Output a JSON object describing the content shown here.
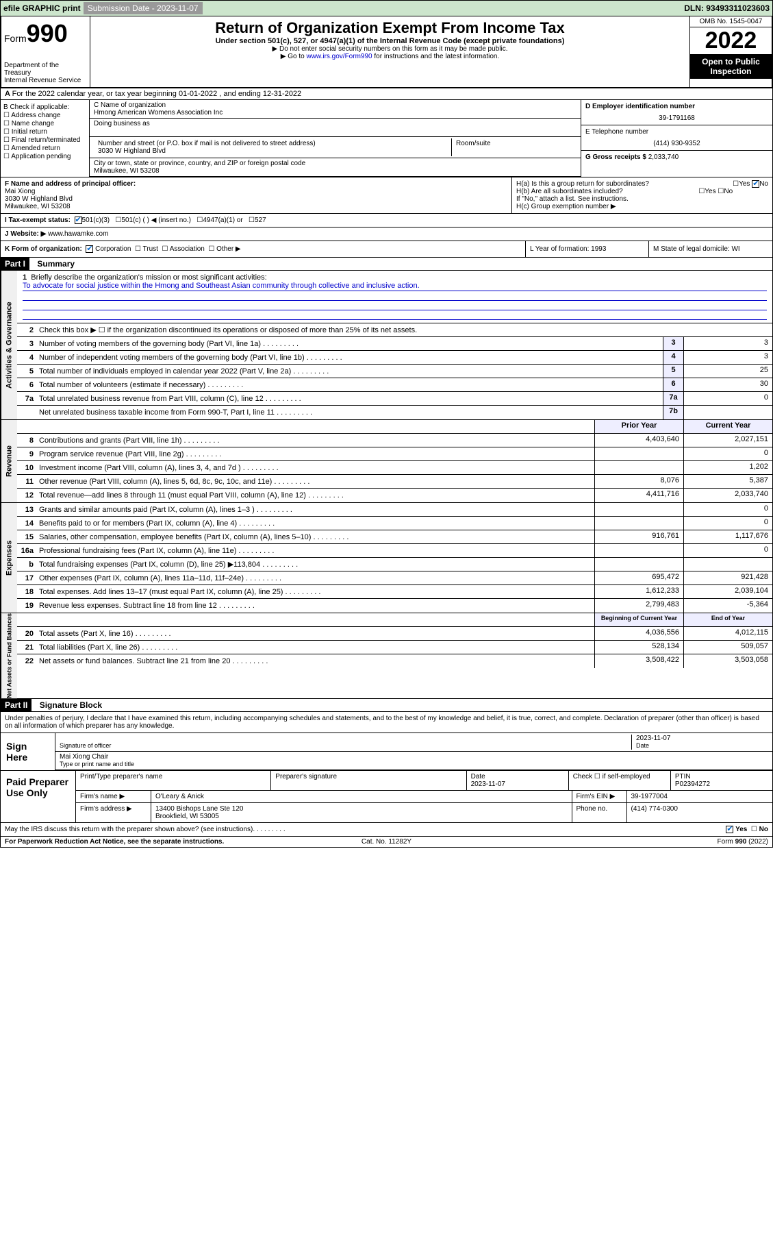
{
  "topbar": {
    "efile": "efile GRAPHIC print",
    "sub_label": "Submission Date - 2023-11-07",
    "dln": "DLN: 93493311023603"
  },
  "header": {
    "form_label": "Form",
    "form_num": "990",
    "dept": "Department of the Treasury\nInternal Revenue Service",
    "title": "Return of Organization Exempt From Income Tax",
    "sub1": "Under section 501(c), 527, or 4947(a)(1) of the Internal Revenue Code (except private foundations)",
    "sub2a": "▶ Do not enter social security numbers on this form as it may be made public.",
    "sub2b": "▶ Go to www.irs.gov/Form990 for instructions and the latest information.",
    "omb": "OMB No. 1545-0047",
    "year": "2022",
    "pub": "Open to Public Inspection"
  },
  "period": "For the 2022 calendar year, or tax year beginning 01-01-2022   , and ending 12-31-2022",
  "box_b": {
    "header": "B Check if applicable:",
    "items": [
      "Address change",
      "Name change",
      "Initial return",
      "Final return/terminated",
      "Amended return",
      "Application pending"
    ]
  },
  "box_c": {
    "name_lbl": "C Name of organization",
    "name": "Hmong American Womens Association Inc",
    "dba_lbl": "Doing business as",
    "addr_lbl": "Number and street (or P.O. box if mail is not delivered to street address)",
    "room_lbl": "Room/suite",
    "addr": "3030 W Highland Blvd",
    "city_lbl": "City or town, state or province, country, and ZIP or foreign postal code",
    "city": "Milwaukee, WI  53208"
  },
  "box_d": {
    "lbl": "D Employer identification number",
    "val": "39-1791168"
  },
  "box_e": {
    "lbl": "E Telephone number",
    "val": "(414) 930-9352"
  },
  "box_g": {
    "lbl": "G Gross receipts $",
    "val": "2,033,740"
  },
  "box_f": {
    "lbl": "F  Name and address of principal officer:",
    "name": "Mai Xiong",
    "addr1": "3030 W Highland Blvd",
    "addr2": "Milwaukee, WI  53208"
  },
  "box_h": {
    "a": "H(a)  Is this a group return for subordinates?",
    "a_ans": "No",
    "b": "H(b)  Are all subordinates included?",
    "b_note": "If \"No,\" attach a list. See instructions.",
    "c": "H(c)  Group exemption number ▶"
  },
  "box_i": "I    Tax-exempt status:",
  "box_i_opts": [
    "501(c)(3)",
    "501(c) (  ) ◀ (insert no.)",
    "4947(a)(1) or",
    "527"
  ],
  "box_j": {
    "lbl": "J   Website: ▶",
    "val": "www.hawamke.com"
  },
  "box_k": {
    "lbl": "K Form of organization:",
    "opts": [
      "Corporation",
      "Trust",
      "Association",
      "Other ▶"
    ]
  },
  "box_l": "L Year of formation: 1993",
  "box_m": "M State of legal domicile: WI",
  "part1": {
    "hdr": "Part I",
    "title": "Summary"
  },
  "mission": {
    "num": "1",
    "lbl": "Briefly describe the organization's mission or most significant activities:",
    "text": "To advocate for social justice within the Hmong and Southeast Asian community through collective and inclusive action."
  },
  "gov_rows": [
    {
      "n": "2",
      "t": "Check this box ▶ ☐  if the organization discontinued its operations or disposed of more than 25% of its net assets."
    },
    {
      "n": "3",
      "t": "Number of voting members of the governing body (Part VI, line 1a)",
      "box": "3",
      "v": "3"
    },
    {
      "n": "4",
      "t": "Number of independent voting members of the governing body (Part VI, line 1b)",
      "box": "4",
      "v": "3"
    },
    {
      "n": "5",
      "t": "Total number of individuals employed in calendar year 2022 (Part V, line 2a)",
      "box": "5",
      "v": "25"
    },
    {
      "n": "6",
      "t": "Total number of volunteers (estimate if necessary)",
      "box": "6",
      "v": "30"
    },
    {
      "n": "7a",
      "t": "Total unrelated business revenue from Part VIII, column (C), line 12",
      "box": "7a",
      "v": "0"
    },
    {
      "n": "",
      "t": "Net unrelated business taxable income from Form 990-T, Part I, line 11",
      "box": "7b",
      "v": ""
    }
  ],
  "col_hdr": {
    "py": "Prior Year",
    "cy": "Current Year"
  },
  "rev_rows": [
    {
      "n": "8",
      "t": "Contributions and grants (Part VIII, line 1h)",
      "py": "4,403,640",
      "cy": "2,027,151"
    },
    {
      "n": "9",
      "t": "Program service revenue (Part VIII, line 2g)",
      "py": "",
      "cy": "0"
    },
    {
      "n": "10",
      "t": "Investment income (Part VIII, column (A), lines 3, 4, and 7d )",
      "py": "",
      "cy": "1,202"
    },
    {
      "n": "11",
      "t": "Other revenue (Part VIII, column (A), lines 5, 6d, 8c, 9c, 10c, and 11e)",
      "py": "8,076",
      "cy": "5,387"
    },
    {
      "n": "12",
      "t": "Total revenue—add lines 8 through 11 (must equal Part VIII, column (A), line 12)",
      "py": "4,411,716",
      "cy": "2,033,740"
    }
  ],
  "exp_rows": [
    {
      "n": "13",
      "t": "Grants and similar amounts paid (Part IX, column (A), lines 1–3 )",
      "py": "",
      "cy": "0"
    },
    {
      "n": "14",
      "t": "Benefits paid to or for members (Part IX, column (A), line 4)",
      "py": "",
      "cy": "0"
    },
    {
      "n": "15",
      "t": "Salaries, other compensation, employee benefits (Part IX, column (A), lines 5–10)",
      "py": "916,761",
      "cy": "1,117,676"
    },
    {
      "n": "16a",
      "t": "Professional fundraising fees (Part IX, column (A), line 11e)",
      "py": "",
      "cy": "0"
    },
    {
      "n": "b",
      "t": "Total fundraising expenses (Part IX, column (D), line 25) ▶113,804",
      "py": "",
      "cy": ""
    },
    {
      "n": "17",
      "t": "Other expenses (Part IX, column (A), lines 11a–11d, 11f–24e)",
      "py": "695,472",
      "cy": "921,428"
    },
    {
      "n": "18",
      "t": "Total expenses. Add lines 13–17 (must equal Part IX, column (A), line 25)",
      "py": "1,612,233",
      "cy": "2,039,104"
    },
    {
      "n": "19",
      "t": "Revenue less expenses. Subtract line 18 from line 12",
      "py": "2,799,483",
      "cy": "-5,364"
    }
  ],
  "na_hdr": {
    "py": "Beginning of Current Year",
    "cy": "End of Year"
  },
  "na_rows": [
    {
      "n": "20",
      "t": "Total assets (Part X, line 16)",
      "py": "4,036,556",
      "cy": "4,012,115"
    },
    {
      "n": "21",
      "t": "Total liabilities (Part X, line 26)",
      "py": "528,134",
      "cy": "509,057"
    },
    {
      "n": "22",
      "t": "Net assets or fund balances. Subtract line 21 from line 20",
      "py": "3,508,422",
      "cy": "3,503,058"
    }
  ],
  "part2": {
    "hdr": "Part II",
    "title": "Signature Block"
  },
  "decl": "Under penalties of perjury, I declare that I have examined this return, including accompanying schedules and statements, and to the best of my knowledge and belief, it is true, correct, and complete. Declaration of preparer (other than officer) is based on all information of which preparer has any knowledge.",
  "sign": {
    "lbl": "Sign Here",
    "sig_lbl": "Signature of officer",
    "date": "2023-11-07",
    "date_lbl": "Date",
    "name": "Mai Xiong  Chair",
    "name_lbl": "Type or print name and title"
  },
  "prep": {
    "lbl": "Paid Preparer Use Only",
    "r1": {
      "c1": "Print/Type preparer's name",
      "c2": "Preparer's signature",
      "c3": "Date\n2023-11-07",
      "c4": "Check ☐ if self-employed",
      "c5": "PTIN\nP02394272"
    },
    "r2": {
      "c1": "Firm's name    ▶",
      "c2": "O'Leary & Anick",
      "c3": "Firm's EIN ▶",
      "c4": "39-1977004"
    },
    "r3": {
      "c1": "Firm's address ▶",
      "c2": "13400 Bishops Lane Ste 120\nBrookfield, WI  53005",
      "c3": "Phone no.",
      "c4": "(414) 774-0300"
    }
  },
  "discuss": "May the IRS discuss this return with the preparer shown above? (see instructions)",
  "discuss_yes": "Yes",
  "discuss_no": "No",
  "footer": {
    "l": "For Paperwork Reduction Act Notice, see the separate instructions.",
    "m": "Cat. No. 11282Y",
    "r": "Form 990 (2022)"
  }
}
